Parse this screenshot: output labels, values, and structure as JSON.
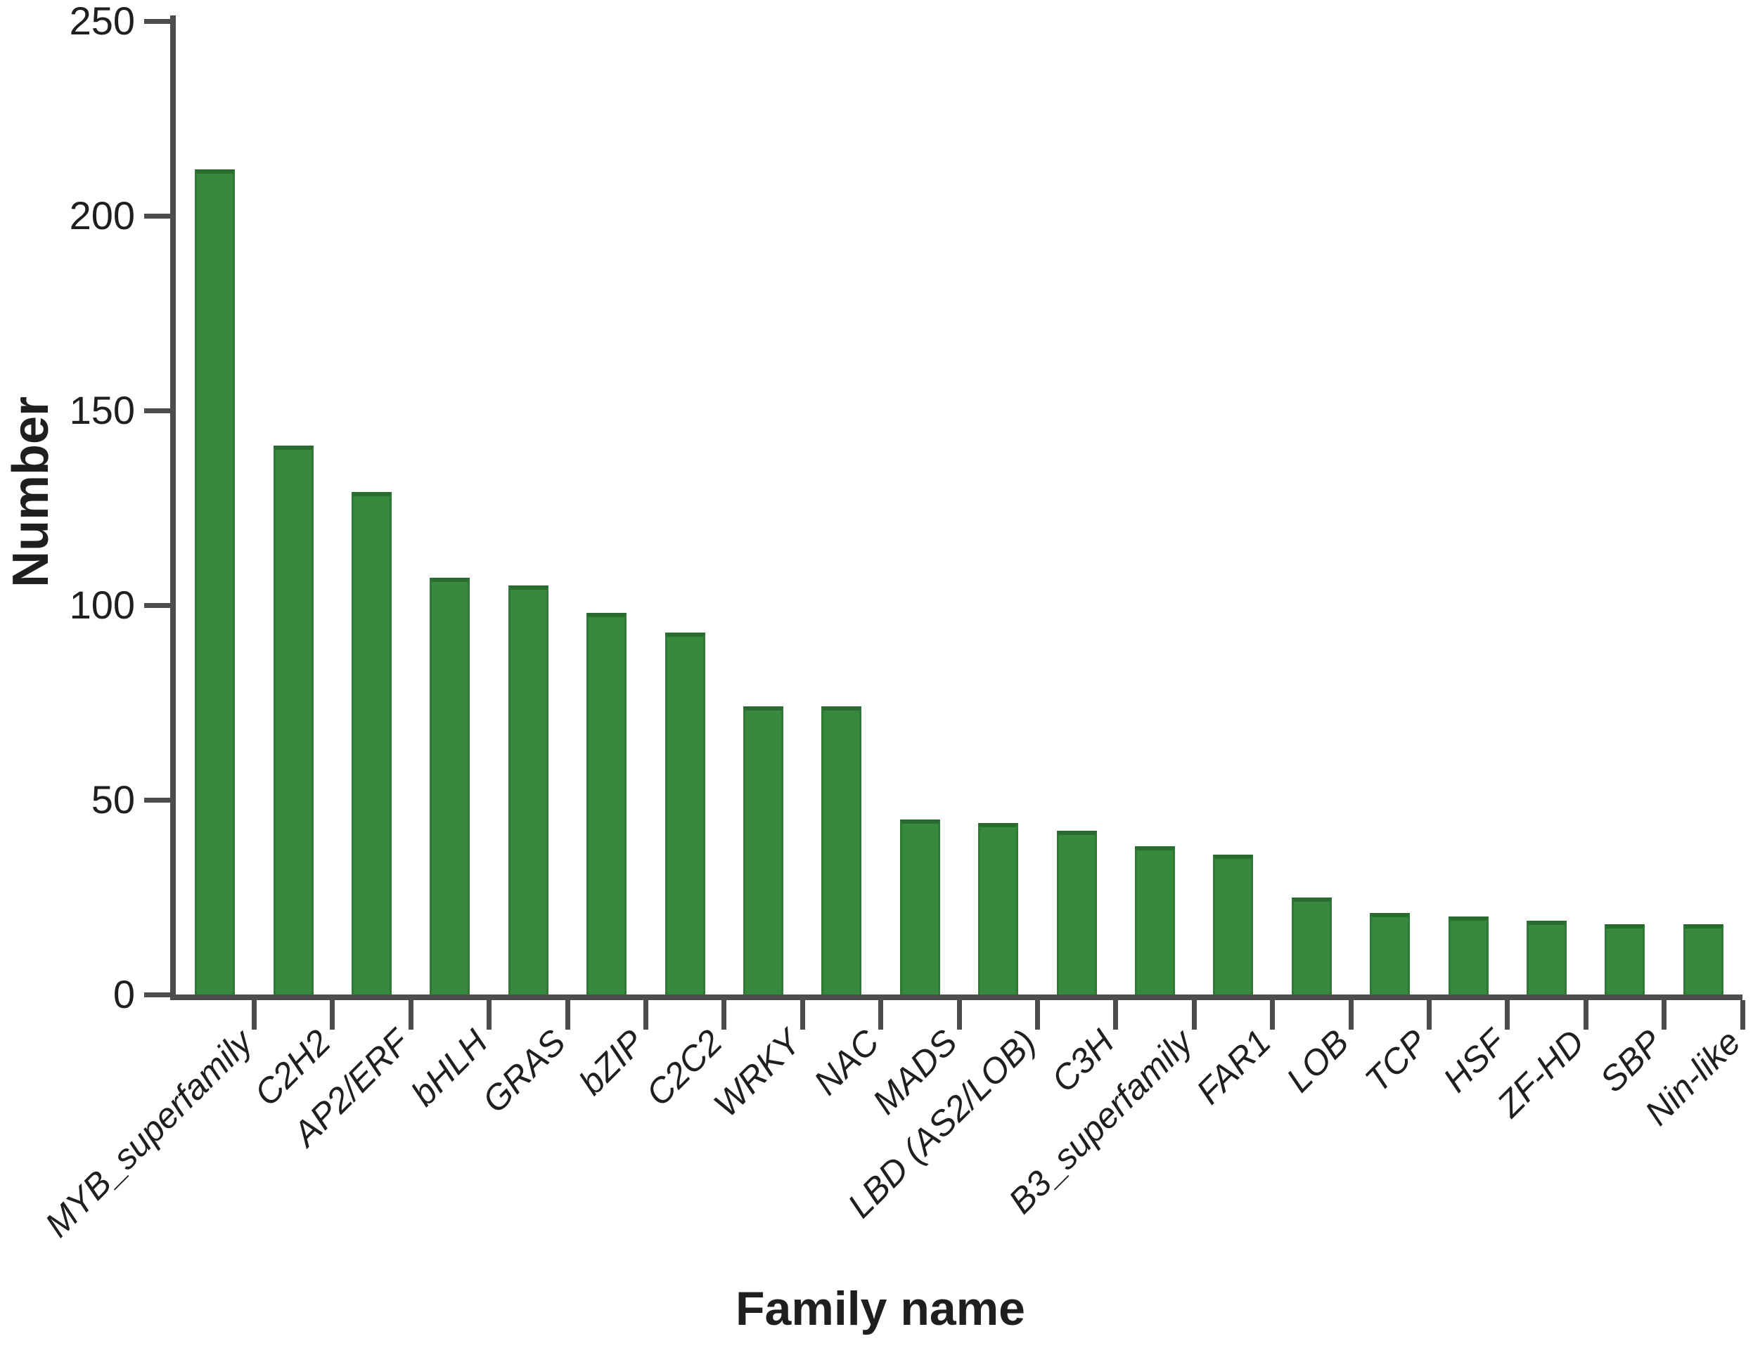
{
  "chart_data": {
    "type": "bar",
    "title": "",
    "xlabel": "Family name",
    "ylabel": "Number",
    "categories": [
      "MYB_superfamily",
      "C2H2",
      "AP2/ERF",
      "bHLH",
      "GRAS",
      "bZIP",
      "C2C2",
      "WRKY",
      "NAC",
      "MADS",
      "LBD (AS2/LOB)",
      "C3H",
      "B3_superfamily",
      "FAR1",
      "LOB",
      "TCP",
      "HSF",
      "ZF-HD",
      "SBP",
      "Nin-like"
    ],
    "values": [
      212,
      141,
      129,
      107,
      105,
      98,
      93,
      74,
      74,
      45,
      44,
      42,
      38,
      36,
      25,
      21,
      20,
      19,
      18,
      18
    ],
    "ylim": [
      0,
      250
    ],
    "yticks": [
      0,
      50,
      100,
      150,
      200,
      250
    ],
    "grid": false,
    "legend": false,
    "bar_color": "#378a3d",
    "bar_edge_color": "#2a6b30",
    "axis_color": "#4d4d4d",
    "text_color": "#1f1f1f"
  }
}
